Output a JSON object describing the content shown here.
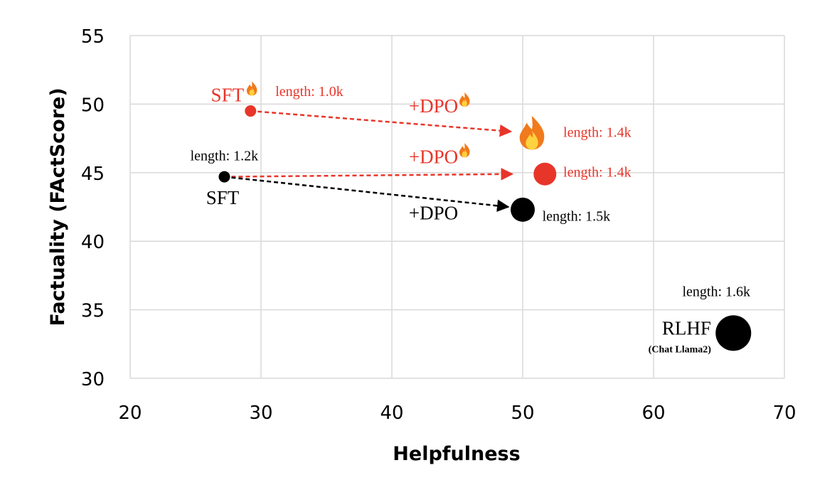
{
  "chart_data": {
    "type": "scatter",
    "xlabel": "Helpfulness",
    "ylabel": "Factuality (FActScore)",
    "xlim": [
      20,
      70
    ],
    "ylim": [
      30,
      55
    ],
    "xticks": [
      20,
      30,
      40,
      50,
      60,
      70
    ],
    "yticks": [
      30,
      35,
      40,
      45,
      50,
      55
    ],
    "grid": true,
    "colors": {
      "red": "#e8352a",
      "black": "#000000",
      "grid": "#d9d9d9"
    },
    "points": [
      {
        "id": "sft-ft",
        "x": 29.2,
        "y": 49.5,
        "r": 8,
        "color": "red",
        "icon": "dot"
      },
      {
        "id": "sft-ft-dpo-ft",
        "x": 50.7,
        "y": 48.0,
        "r": 0,
        "color": "red",
        "icon": "fire-icon"
      },
      {
        "id": "sft",
        "x": 27.2,
        "y": 44.7,
        "r": 8,
        "color": "black",
        "icon": "dot"
      },
      {
        "id": "sft-dpo-ft",
        "x": 51.7,
        "y": 44.9,
        "r": 16,
        "color": "red",
        "icon": "dot"
      },
      {
        "id": "sft-dpo",
        "x": 50.0,
        "y": 42.3,
        "r": 17,
        "color": "black",
        "icon": "dot"
      },
      {
        "id": "rlhf",
        "x": 66.1,
        "y": 33.3,
        "r": 25,
        "color": "black",
        "icon": "dot"
      }
    ],
    "arrows": [
      {
        "from": [
          29.2,
          49.5
        ],
        "to": [
          49.1,
          48.0
        ],
        "color": "red"
      },
      {
        "from": [
          27.2,
          44.7
        ],
        "to": [
          49.2,
          44.9
        ],
        "color": "red"
      },
      {
        "from": [
          27.2,
          44.7
        ],
        "to": [
          48.9,
          42.5
        ],
        "color": "black"
      }
    ],
    "annotations": [
      {
        "id": "sft-ft-name",
        "text": "SFT",
        "x": 28.7,
        "y": 50.2,
        "anchor": "end",
        "size": "big",
        "color": "red",
        "fire": true
      },
      {
        "id": "sft-ft-length",
        "text": "length: 1.0k",
        "x": 31.1,
        "y": 50.6,
        "anchor": "start",
        "size": "small",
        "color": "red"
      },
      {
        "id": "dpo-ft-top",
        "text": "+DPO",
        "x": 41.3,
        "y": 49.4,
        "anchor": "start",
        "size": "big",
        "color": "red",
        "fire": true
      },
      {
        "id": "fire-length",
        "text": "length: 1.4k",
        "x": 53.1,
        "y": 47.6,
        "anchor": "start",
        "size": "small",
        "color": "red"
      },
      {
        "id": "sft-length",
        "text": "length: 1.2k",
        "x": 24.6,
        "y": 45.9,
        "anchor": "start",
        "size": "small",
        "color": "black"
      },
      {
        "id": "dpo-ft-mid",
        "text": "+DPO",
        "x": 41.3,
        "y": 45.7,
        "anchor": "start",
        "size": "big",
        "color": "red",
        "fire": true
      },
      {
        "id": "sft-dpo-ft-length",
        "text": "length: 1.4k",
        "x": 53.1,
        "y": 44.7,
        "anchor": "start",
        "size": "small",
        "color": "red"
      },
      {
        "id": "sft-name",
        "text": "SFT",
        "x": 25.8,
        "y": 42.7,
        "anchor": "start",
        "size": "big",
        "color": "black"
      },
      {
        "id": "dpo-black",
        "text": "+DPO",
        "x": 41.3,
        "y": 41.6,
        "anchor": "start",
        "size": "big",
        "color": "black"
      },
      {
        "id": "sft-dpo-length",
        "text": "length: 1.5k",
        "x": 51.5,
        "y": 41.5,
        "anchor": "start",
        "size": "small",
        "color": "black"
      },
      {
        "id": "rlhf-length",
        "text": "length: 1.6k",
        "x": 62.2,
        "y": 36.0,
        "anchor": "start",
        "size": "small",
        "color": "black"
      },
      {
        "id": "rlhf-name",
        "text": "RLHF",
        "x": 64.4,
        "y": 33.2,
        "anchor": "end",
        "size": "big",
        "color": "black"
      },
      {
        "id": "rlhf-note",
        "text": "(Chat Llama2)",
        "x": 64.4,
        "y": 31.9,
        "anchor": "end",
        "size": "note",
        "color": "black"
      }
    ]
  }
}
